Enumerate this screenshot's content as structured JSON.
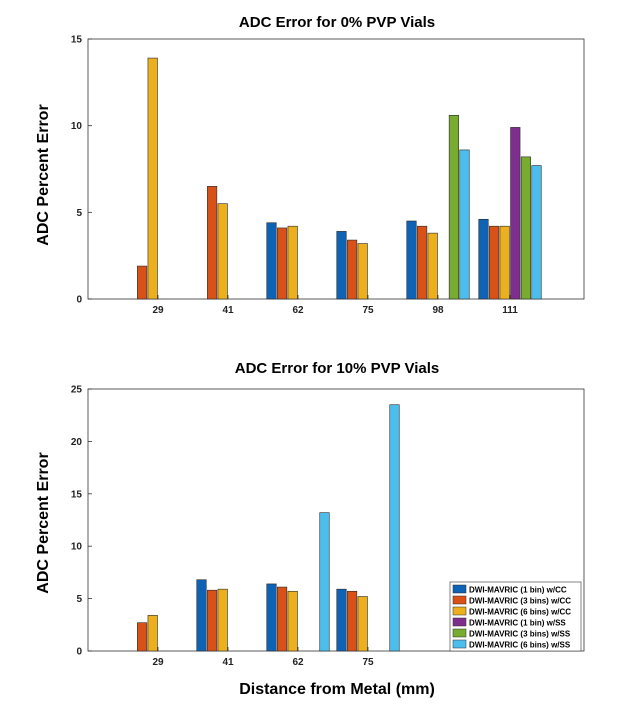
{
  "colors": {
    "DWI-MAVRIC (1 bin) w/CC": "#0e63b5",
    "DWI-MAVRIC (3 bins) w/CC": "#d85218",
    "DWI-MAVRIC (6 bins) w/CC": "#ecb01f",
    "DWI-MAVRIC (1 bin) w/SS": "#7e2f8e",
    "DWI-MAVRIC (3 bins) w/SS": "#77ac30",
    "DWI-MAVRIC (6 bins) w/SS": "#4cbeee"
  },
  "shared_xlabel": "Distance from Metal (mm)",
  "chart_data": [
    {
      "type": "bar",
      "title": "ADC Error for 0% PVP Vials",
      "xlabel": "",
      "ylabel": "ADC Percent Error",
      "ylim": [
        0,
        15
      ],
      "yticks": [
        0,
        5,
        10,
        15
      ],
      "grid": false,
      "categories": [
        "29",
        "41",
        "62",
        "75",
        "98",
        "111"
      ],
      "series": [
        {
          "name": "DWI-MAVRIC (1 bin) w/CC",
          "values": [
            null,
            null,
            4.4,
            3.9,
            4.5,
            4.6
          ]
        },
        {
          "name": "DWI-MAVRIC (3 bins) w/CC",
          "values": [
            1.9,
            6.5,
            4.1,
            3.4,
            4.2,
            4.2
          ]
        },
        {
          "name": "DWI-MAVRIC (6 bins) w/CC",
          "values": [
            13.9,
            5.5,
            4.2,
            3.2,
            3.8,
            4.2
          ]
        },
        {
          "name": "DWI-MAVRIC (1 bin) w/SS",
          "values": [
            null,
            null,
            null,
            null,
            null,
            9.9
          ]
        },
        {
          "name": "DWI-MAVRIC (3 bins) w/SS",
          "values": [
            null,
            null,
            null,
            null,
            10.6,
            8.2
          ]
        },
        {
          "name": "DWI-MAVRIC (6 bins) w/SS",
          "values": [
            null,
            null,
            null,
            null,
            8.6,
            7.7
          ]
        }
      ]
    },
    {
      "type": "bar",
      "title": "ADC Error for 10% PVP Vials",
      "xlabel": "Distance from Metal (mm)",
      "ylabel": "ADC Percent Error",
      "ylim": [
        0,
        25
      ],
      "yticks": [
        0,
        5,
        10,
        15,
        20,
        25
      ],
      "grid": false,
      "legend": "bottom-right",
      "categories": [
        "29",
        "41",
        "62",
        "75"
      ],
      "series": [
        {
          "name": "DWI-MAVRIC (1 bin) w/CC",
          "values": [
            null,
            6.8,
            6.4,
            5.9
          ]
        },
        {
          "name": "DWI-MAVRIC (3 bins) w/CC",
          "values": [
            2.7,
            5.8,
            6.1,
            5.7
          ]
        },
        {
          "name": "DWI-MAVRIC (6 bins) w/CC",
          "values": [
            3.4,
            5.9,
            5.7,
            5.2
          ]
        },
        {
          "name": "DWI-MAVRIC (1 bin) w/SS",
          "values": [
            null,
            null,
            null,
            null
          ]
        },
        {
          "name": "DWI-MAVRIC (3 bins) w/SS",
          "values": [
            null,
            null,
            null,
            null
          ]
        },
        {
          "name": "DWI-MAVRIC (6 bins) w/SS",
          "values": [
            null,
            null,
            13.2,
            23.5
          ]
        }
      ]
    }
  ]
}
